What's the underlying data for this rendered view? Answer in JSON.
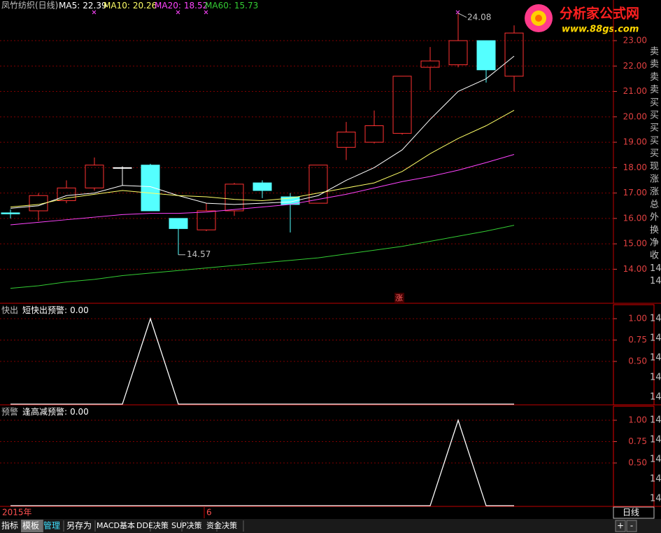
{
  "chart_data": [
    {
      "type": "candlestick",
      "title": "凤竹纺织(日线)",
      "signal": "涨",
      "open": [
        16.22,
        16.3,
        16.7,
        17.2,
        18.0,
        18.1,
        16.0,
        15.55,
        16.3,
        17.4,
        16.85,
        16.6,
        18.8,
        19.0,
        19.35,
        21.95,
        22.05,
        23.0,
        21.6
      ],
      "close": [
        16.18,
        16.9,
        17.2,
        18.1,
        18.0,
        16.3,
        15.6,
        16.3,
        17.35,
        17.1,
        16.55,
        18.1,
        19.4,
        19.65,
        21.6,
        22.2,
        23.0,
        21.85,
        23.3
      ],
      "high": [
        16.35,
        17.0,
        17.5,
        18.4,
        18.05,
        18.15,
        16.0,
        16.6,
        17.4,
        17.5,
        17.0,
        18.1,
        19.8,
        20.25,
        21.6,
        22.75,
        24.08,
        23.0,
        23.6
      ],
      "low": [
        16.0,
        15.9,
        16.6,
        17.1,
        17.3,
        16.3,
        14.57,
        15.5,
        16.1,
        16.8,
        15.45,
        16.6,
        18.3,
        18.95,
        19.3,
        21.05,
        21.95,
        21.35,
        21.0
      ],
      "up_color": "#ff3232",
      "down_color": "#54ffff",
      "flat_color": "#ffffff",
      "extreme_labels": true,
      "lines": [
        {
          "name": "MA5:",
          "color": "#ffffff",
          "values": [
            16.4,
            16.5,
            16.9,
            17.0,
            17.3,
            17.25,
            16.9,
            16.6,
            16.55,
            16.6,
            16.65,
            16.9,
            17.5,
            18.0,
            18.7,
            19.9,
            21.0,
            21.5,
            22.39
          ]
        },
        {
          "name": "MA10:",
          "color": "#ffff66",
          "values": [
            16.45,
            16.55,
            16.8,
            16.95,
            17.1,
            17.0,
            16.9,
            16.85,
            16.75,
            16.7,
            16.8,
            17.0,
            17.2,
            17.4,
            17.85,
            18.55,
            19.15,
            19.65,
            20.26
          ]
        },
        {
          "name": "MA20:",
          "color": "#ff44ff",
          "values": [
            15.75,
            15.85,
            15.95,
            16.05,
            16.15,
            16.2,
            16.2,
            16.25,
            16.35,
            16.45,
            16.55,
            16.75,
            16.95,
            17.2,
            17.45,
            17.65,
            17.9,
            18.2,
            18.52
          ]
        },
        {
          "name": "MA60:",
          "color": "#33cc33",
          "values": [
            13.25,
            13.35,
            13.5,
            13.6,
            13.75,
            13.85,
            13.95,
            14.05,
            14.15,
            14.25,
            14.35,
            14.45,
            14.6,
            14.75,
            14.9,
            15.1,
            15.3,
            15.5,
            15.73
          ]
        }
      ],
      "ylim": [
        12.66,
        24.6
      ],
      "yticks": [
        {
          "value": 23,
          "label": "23.00"
        },
        {
          "value": 22,
          "label": "22.00"
        },
        {
          "value": 21,
          "label": "21.00"
        },
        {
          "value": 20,
          "label": "20.00"
        },
        {
          "value": 19,
          "label": "19.00"
        },
        {
          "value": 18,
          "label": "18.00"
        },
        {
          "value": 17,
          "label": "17.00"
        },
        {
          "value": 16,
          "label": "16.00"
        },
        {
          "value": 15,
          "label": "15.00"
        },
        {
          "value": 14,
          "label": "14.00"
        }
      ],
      "grid": true,
      "side_labels": [
        "卖",
        "卖",
        "卖",
        "卖",
        "买",
        "买",
        "买",
        "买",
        "买",
        "现",
        "涨",
        "涨",
        "总",
        "外",
        "换",
        "净",
        "收",
        "14",
        "14"
      ]
    },
    {
      "type": "line",
      "title": "快出",
      "series": [
        {
          "name": "短快出预警:",
          "color": "#ffffff",
          "current_label": "0.00",
          "values": [
            0,
            0,
            0,
            0,
            0,
            1,
            0,
            0,
            0,
            0,
            0,
            0,
            0,
            0,
            0,
            0,
            0,
            0,
            0
          ]
        }
      ],
      "ylim": [
        -0.008,
        1.164
      ],
      "yticks": [
        {
          "value": 1,
          "label": "1.00"
        },
        {
          "value": 0.75,
          "label": "0.75"
        },
        {
          "value": 0.5,
          "label": "0.50"
        }
      ],
      "grid": true,
      "side_labels": [
        "14",
        "14",
        "14",
        "14",
        "14"
      ]
    },
    {
      "type": "line",
      "title": "预警",
      "series": [
        {
          "name": "逢高减预警:",
          "color": "#ffffff",
          "current_label": "0.00",
          "values": [
            0,
            0,
            0,
            0,
            0,
            0,
            0,
            0,
            0,
            0,
            0,
            0,
            0,
            0,
            0,
            0,
            1,
            0,
            0
          ]
        }
      ],
      "ylim": [
        -0.008,
        1.164
      ],
      "yticks": [
        {
          "value": 1,
          "label": "1.00"
        },
        {
          "value": 0.75,
          "label": "0.75"
        },
        {
          "value": 0.5,
          "label": "0.50"
        }
      ],
      "grid": true,
      "side_labels": [
        "14",
        "14",
        "14",
        "14",
        "14"
      ]
    }
  ],
  "x_axis_labels": [
    "2015年",
    "6"
  ],
  "period": "日线",
  "logo": {
    "title": "分析家公式网",
    "url": "www.88gs.com"
  },
  "tabs": [
    "指标",
    "模板",
    "管理",
    "另存为",
    "MACD基本",
    "DDE决策",
    "SUP决策",
    "资金决策"
  ],
  "nav": [
    "+",
    "-"
  ]
}
